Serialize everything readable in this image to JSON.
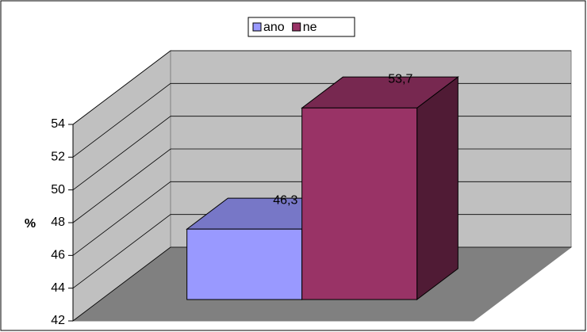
{
  "chart_data": {
    "type": "bar",
    "categories": [
      null
    ],
    "series": [
      {
        "name": "ano",
        "color": "#9999ff",
        "values": [
          46.3
        ],
        "value_labels": [
          "46,3"
        ]
      },
      {
        "name": "ne",
        "color": "#993366",
        "values": [
          53.7
        ],
        "value_labels": [
          "53,7"
        ]
      }
    ],
    "y_label": "%",
    "ylim": [
      42,
      54
    ],
    "yticks": [
      42,
      44,
      46,
      48,
      50,
      52,
      54
    ],
    "grid": true,
    "legend": "top"
  }
}
